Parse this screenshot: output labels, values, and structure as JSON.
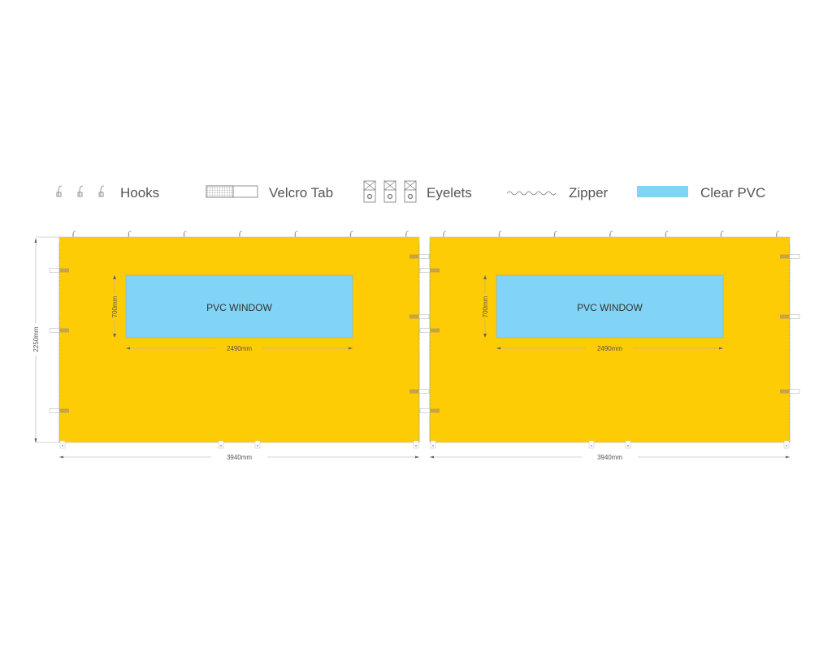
{
  "legend": {
    "hooks": "Hooks",
    "velcro": "Velcro Tab",
    "eyelets": "Eyelets",
    "zipper": "Zipper",
    "clear_pvc": "Clear PVC"
  },
  "panels": [
    {
      "window_label": "PVC WINDOW",
      "window_height": "700mm",
      "window_width": "2490mm",
      "panel_width": "3940mm",
      "panel_height": "2250mm"
    },
    {
      "window_label": "PVC WINDOW",
      "window_height": "700mm",
      "window_width": "2490mm",
      "panel_width": "3940mm"
    }
  ],
  "colors": {
    "panel": "#FECC05",
    "pvc": "#81D4F5",
    "velcro": "#C9A84A",
    "line": "#999999"
  }
}
